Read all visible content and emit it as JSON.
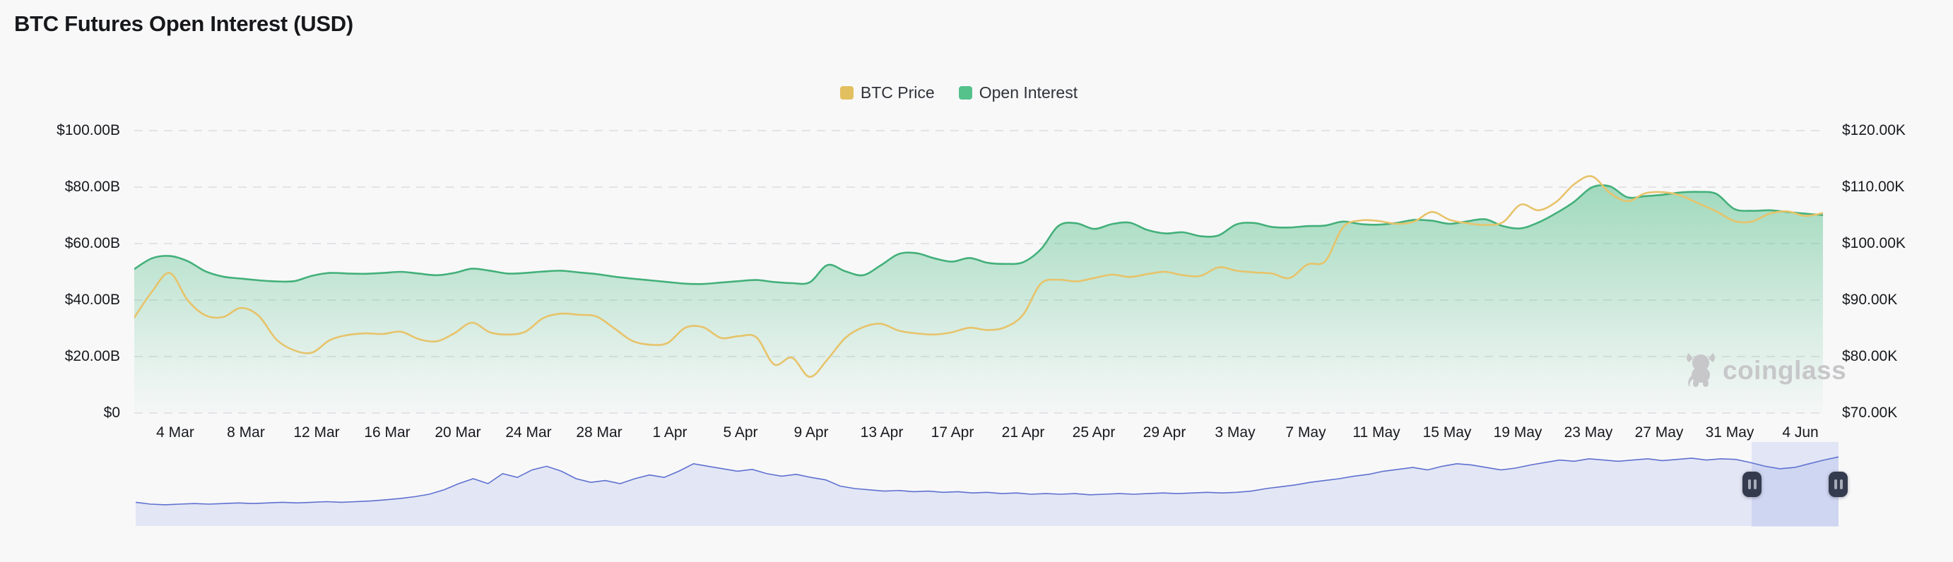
{
  "page": {
    "background": "#f8f8f9",
    "title": "BTC Futures Open Interest (USD)"
  },
  "legend": [
    {
      "label": "BTC Price",
      "color": "#e2c05f"
    },
    {
      "label": "Open Interest",
      "color": "#55c28c"
    }
  ],
  "watermark": {
    "text": "coinglass"
  },
  "colors": {
    "background": "#f8f8f9",
    "gridline": "#e3e3e6",
    "btc_line": "#e7c36a",
    "oi_line": "#43b07a",
    "oi_fill_top": "#4fbd85",
    "nav_fill": "#e3e6f5",
    "nav_line": "#5f71cf",
    "nav_selection": "rgba(108,130,225,0.16)",
    "handle": "#353b4e"
  },
  "chart_data": {
    "type": "line",
    "title": "BTC Futures Open Interest (USD)",
    "grid": "dashed horizontal",
    "legend_position": "top-center",
    "x_tick_labels": [
      "4 Mar",
      "8 Mar",
      "12 Mar",
      "16 Mar",
      "20 Mar",
      "24 Mar",
      "28 Mar",
      "1 Apr",
      "5 Apr",
      "9 Apr",
      "13 Apr",
      "17 Apr",
      "21 Apr",
      "25 Apr",
      "29 Apr",
      "3 May",
      "7 May",
      "11 May",
      "15 May",
      "19 May",
      "23 May",
      "27 May",
      "31 May",
      "4 Jun"
    ],
    "left_axis": {
      "name": "Open Interest",
      "unit": "USD billions",
      "range": [
        0,
        100
      ],
      "ticks": [
        "$100.00B",
        "$80.00B",
        "$60.00B",
        "$40.00B",
        "$20.00B",
        "$0"
      ]
    },
    "right_axis": {
      "name": "BTC Price",
      "unit": "USD thousands",
      "range": [
        70,
        120
      ],
      "ticks": [
        "$120.00K",
        "$110.00K",
        "$100.00K",
        "$90.00K",
        "$80.00K",
        "$70.00K"
      ]
    },
    "dates": [
      "3 Mar",
      "4 Mar",
      "5 Mar",
      "6 Mar",
      "7 Mar",
      "8 Mar",
      "9 Mar",
      "10 Mar",
      "11 Mar",
      "12 Mar",
      "13 Mar",
      "14 Mar",
      "15 Mar",
      "16 Mar",
      "17 Mar",
      "18 Mar",
      "19 Mar",
      "20 Mar",
      "21 Mar",
      "22 Mar",
      "23 Mar",
      "24 Mar",
      "25 Mar",
      "26 Mar",
      "27 Mar",
      "28 Mar",
      "29 Mar",
      "30 Mar",
      "31 Mar",
      "1 Apr",
      "2 Apr",
      "3 Apr",
      "4 Apr",
      "5 Apr",
      "6 Apr",
      "7 Apr",
      "8 Apr",
      "9 Apr",
      "10 Apr",
      "11 Apr",
      "12 Apr",
      "13 Apr",
      "14 Apr",
      "15 Apr",
      "16 Apr",
      "17 Apr",
      "18 Apr",
      "19 Apr",
      "20 Apr",
      "21 Apr",
      "22 Apr",
      "23 Apr",
      "24 Apr",
      "25 Apr",
      "26 Apr",
      "27 Apr",
      "28 Apr",
      "29 Apr",
      "30 Apr",
      "1 May",
      "2 May",
      "3 May",
      "4 May",
      "5 May",
      "6 May",
      "7 May",
      "8 May",
      "9 May",
      "10 May",
      "11 May",
      "12 May",
      "13 May",
      "14 May",
      "15 May",
      "16 May",
      "17 May",
      "18 May",
      "19 May",
      "20 May",
      "21 May",
      "22 May",
      "23 May",
      "24 May",
      "25 May",
      "26 May",
      "27 May",
      "28 May",
      "29 May",
      "30 May",
      "31 May",
      "1 Jun",
      "2 Jun",
      "3 Jun",
      "4 Jun",
      "5 Jun",
      "6 Jun"
    ],
    "series": [
      {
        "name": "Open Interest",
        "axis": "left",
        "unit": "$B",
        "color": "#43b07a",
        "area": true,
        "values": [
          51.0,
          54.8,
          55.6,
          53.8,
          50.2,
          48.3,
          47.6,
          47.0,
          46.6,
          46.7,
          48.6,
          49.6,
          49.4,
          49.3,
          49.6,
          50.0,
          49.4,
          48.8,
          49.6,
          51.1,
          50.4,
          49.4,
          49.6,
          50.1,
          50.4,
          49.8,
          49.2,
          48.3,
          47.6,
          47.0,
          46.4,
          45.8,
          45.7,
          46.2,
          46.7,
          47.1,
          46.4,
          46.0,
          46.3,
          52.4,
          50.2,
          48.8,
          52.3,
          56.3,
          56.6,
          54.8,
          53.6,
          54.9,
          53.2,
          52.8,
          53.4,
          58.0,
          66.3,
          67.2,
          65.2,
          66.9,
          67.4,
          64.8,
          63.6,
          64.0,
          62.6,
          62.9,
          66.8,
          67.3,
          65.9,
          65.7,
          66.2,
          66.4,
          67.8,
          66.9,
          66.7,
          67.3,
          68.4,
          68.1,
          67.0,
          67.9,
          68.6,
          66.2,
          65.4,
          67.5,
          70.8,
          74.8,
          79.9,
          80.3,
          76.4,
          76.8,
          77.3,
          78.1,
          78.3,
          77.6,
          72.3,
          71.6,
          71.8,
          71.2,
          70.6,
          70.1
        ]
      },
      {
        "name": "BTC Price",
        "axis": "right",
        "unit": "$K",
        "color": "#e7c36a",
        "area": false,
        "values": [
          86.9,
          91.5,
          94.8,
          90.0,
          87.3,
          87.0,
          88.6,
          87.2,
          83.0,
          81.1,
          80.7,
          82.9,
          83.8,
          84.1,
          84.0,
          84.4,
          83.1,
          82.7,
          84.1,
          86.0,
          84.3,
          83.9,
          84.4,
          86.8,
          87.6,
          87.4,
          87.1,
          85.0,
          82.8,
          82.1,
          82.4,
          85.1,
          85.2,
          83.3,
          83.6,
          83.4,
          78.6,
          79.8,
          76.4,
          79.5,
          83.3,
          85.2,
          85.8,
          84.6,
          84.1,
          83.9,
          84.3,
          85.1,
          84.7,
          85.2,
          87.4,
          92.9,
          93.6,
          93.3,
          93.9,
          94.5,
          94.1,
          94.6,
          95.0,
          94.4,
          94.3,
          95.8,
          95.2,
          94.9,
          94.7,
          93.9,
          96.3,
          96.9,
          102.9,
          104.1,
          104.0,
          103.5,
          103.9,
          105.6,
          104.2,
          103.6,
          103.3,
          103.8,
          106.9,
          105.9,
          107.4,
          110.5,
          111.9,
          109.0,
          107.5,
          108.9,
          109.1,
          108.5,
          107.1,
          105.7,
          104.0,
          103.9,
          105.3,
          105.7,
          104.9,
          105.4
        ]
      }
    ],
    "navigator": {
      "description": "BTC price mini-map with zoom window at right",
      "selection_start_fraction": 0.949,
      "values": [
        0.2,
        0.17,
        0.16,
        0.17,
        0.18,
        0.17,
        0.18,
        0.19,
        0.18,
        0.19,
        0.2,
        0.19,
        0.2,
        0.21,
        0.2,
        0.21,
        0.22,
        0.24,
        0.26,
        0.29,
        0.33,
        0.4,
        0.5,
        0.58,
        0.5,
        0.66,
        0.6,
        0.72,
        0.78,
        0.7,
        0.58,
        0.52,
        0.55,
        0.5,
        0.58,
        0.64,
        0.6,
        0.7,
        0.82,
        0.78,
        0.74,
        0.7,
        0.73,
        0.66,
        0.62,
        0.65,
        0.6,
        0.56,
        0.46,
        0.42,
        0.4,
        0.38,
        0.39,
        0.37,
        0.38,
        0.36,
        0.37,
        0.35,
        0.36,
        0.34,
        0.35,
        0.33,
        0.34,
        0.33,
        0.34,
        0.32,
        0.33,
        0.34,
        0.33,
        0.34,
        0.35,
        0.34,
        0.35,
        0.36,
        0.35,
        0.36,
        0.38,
        0.42,
        0.45,
        0.48,
        0.52,
        0.55,
        0.58,
        0.62,
        0.65,
        0.7,
        0.73,
        0.76,
        0.72,
        0.78,
        0.82,
        0.8,
        0.76,
        0.72,
        0.75,
        0.8,
        0.84,
        0.88,
        0.86,
        0.9,
        0.88,
        0.86,
        0.88,
        0.9,
        0.87,
        0.89,
        0.91,
        0.88,
        0.9,
        0.89,
        0.84,
        0.78,
        0.74,
        0.76,
        0.82,
        0.88,
        0.93
      ]
    }
  }
}
